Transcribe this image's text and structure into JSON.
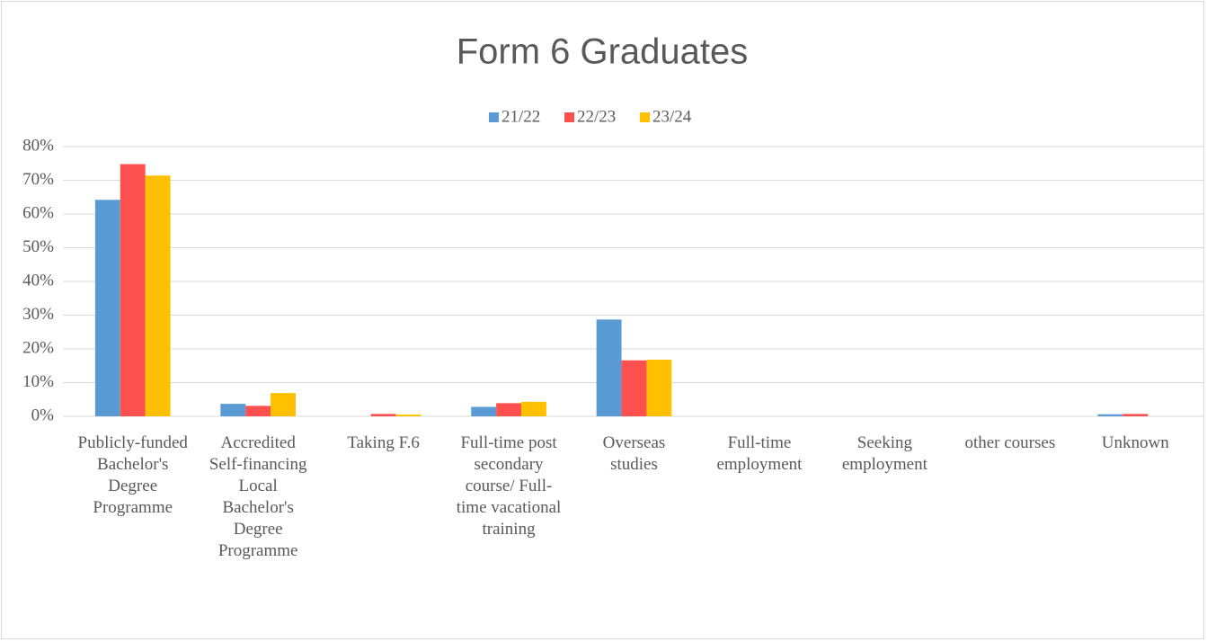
{
  "chart_data": {
    "type": "bar",
    "title": "Form 6 Graduates",
    "categories": [
      "Publicly-funded Bachelor's Degree Programme",
      "Accredited Self-financing Local Bachelor's Degree Programme",
      "Taking F.6",
      "Full-time post secondary course/ Full-time vacational training",
      "Overseas studies",
      "Full-time employment",
      "Seeking employment",
      "other courses",
      "Unknown"
    ],
    "series": [
      {
        "name": "21/22",
        "color": "#5b9bd5",
        "values": [
          64.2,
          3.7,
          0,
          2.8,
          28.7,
          0,
          0,
          0,
          0.6
        ]
      },
      {
        "name": "22/23",
        "color": "#ff5050",
        "values": [
          74.8,
          3.1,
          0.7,
          3.9,
          16.6,
          0,
          0,
          0,
          0.7
        ]
      },
      {
        "name": "23/24",
        "color": "#ffc000",
        "values": [
          71.4,
          6.9,
          0.5,
          4.3,
          16.8,
          0,
          0,
          0,
          0
        ]
      }
    ],
    "ylim": [
      0,
      80
    ],
    "yticks": [
      {
        "value": 0,
        "label": "0%"
      },
      {
        "value": 10,
        "label": "10%"
      },
      {
        "value": 20,
        "label": "20%"
      },
      {
        "value": 30,
        "label": "30%"
      },
      {
        "value": 40,
        "label": "40%"
      },
      {
        "value": 50,
        "label": "50%"
      },
      {
        "value": 60,
        "label": "60%"
      },
      {
        "value": 70,
        "label": "70%"
      },
      {
        "value": 80,
        "label": "80%"
      }
    ],
    "grid": true,
    "legend": "top"
  }
}
